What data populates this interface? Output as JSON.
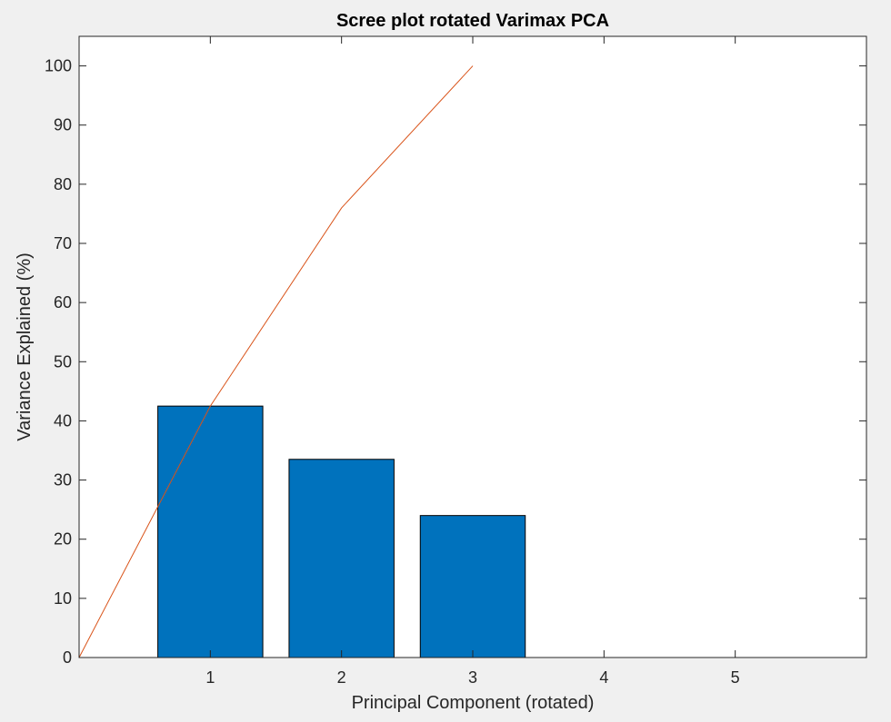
{
  "chart_data": {
    "type": "bar",
    "title": "Scree plot rotated Varimax PCA",
    "xlabel": "Principal Component (rotated)",
    "ylabel": "Variance Explained (%)",
    "xlim": [
      0,
      6
    ],
    "ylim": [
      0,
      105
    ],
    "xticks": [
      1,
      2,
      3,
      4,
      5
    ],
    "yticks": [
      0,
      10,
      20,
      30,
      40,
      50,
      60,
      70,
      80,
      90,
      100
    ],
    "grid": false,
    "series": [
      {
        "type": "bar",
        "x": [
          1,
          2,
          3
        ],
        "values": [
          42.5,
          33.5,
          24.0
        ],
        "color": "#0072bd"
      },
      {
        "type": "line",
        "x": [
          0,
          1,
          2,
          3
        ],
        "values": [
          0,
          42.5,
          76.0,
          100.0
        ],
        "color": "#d95319"
      }
    ]
  }
}
